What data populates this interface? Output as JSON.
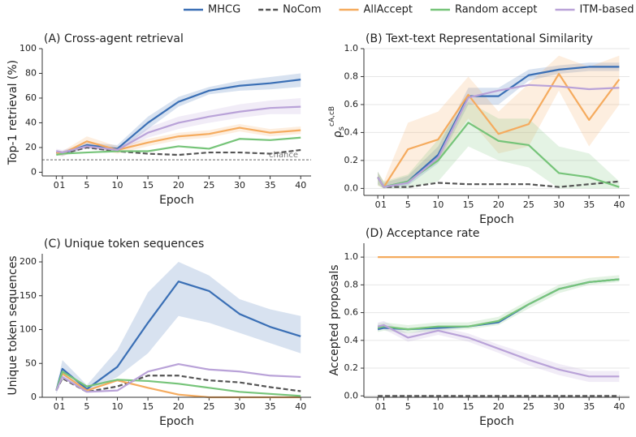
{
  "chart_data": [
    {
      "type": "line",
      "title": "(A) Cross-agent retrieval",
      "xlabel": "Epoch",
      "ylabel": "Top-1 retrieval (%)",
      "x": [
        0,
        1,
        5,
        10,
        15,
        20,
        25,
        30,
        35,
        40
      ],
      "xlim": [
        -2.3,
        41.7
      ],
      "xticks": [
        0,
        1,
        5,
        10,
        15,
        20,
        25,
        30,
        35,
        40
      ],
      "ylim": [
        -3,
        100
      ],
      "yticks": [
        0,
        20,
        40,
        60,
        80,
        100
      ],
      "grid": false,
      "hline": {
        "value": 10,
        "label": "chance"
      },
      "series": [
        {
          "name": "MHCG",
          "color": "#3a6fb5",
          "values": [
            16,
            15,
            22,
            19,
            40,
            57,
            66,
            70,
            72,
            75
          ],
          "lower": [
            14,
            13,
            20,
            16,
            35,
            53,
            63,
            66,
            67,
            69
          ],
          "upper": [
            18,
            17,
            24,
            22,
            45,
            61,
            69,
            74,
            77,
            80
          ]
        },
        {
          "name": "NoCom",
          "color": "#555555",
          "dashed": true,
          "values": [
            16,
            15,
            20,
            17,
            15,
            14,
            16,
            16,
            15,
            18
          ]
        },
        {
          "name": "AllAccept",
          "color": "#f5ab5e",
          "values": [
            16,
            15,
            25,
            18,
            24,
            29,
            31,
            36,
            32,
            34
          ],
          "lower": [
            14,
            13,
            21,
            15,
            21,
            26,
            28,
            33,
            29,
            31
          ],
          "upper": [
            18,
            17,
            29,
            21,
            27,
            32,
            34,
            39,
            35,
            37
          ]
        },
        {
          "name": "Random accept",
          "color": "#76c479",
          "values": [
            14,
            15,
            16,
            17,
            17,
            21,
            19,
            27,
            26,
            28
          ]
        },
        {
          "name": "ITM-based",
          "color": "#b9a2d8",
          "values": [
            17,
            16,
            21,
            18,
            32,
            40,
            45,
            49,
            52,
            53
          ],
          "lower": [
            15,
            14,
            19,
            16,
            28,
            35,
            40,
            44,
            47,
            47
          ],
          "upper": [
            19,
            18,
            23,
            20,
            36,
            45,
            50,
            55,
            58,
            60
          ]
        }
      ]
    },
    {
      "type": "line",
      "title": "(B) Text-text Representational Similarity",
      "xlabel": "Epoch",
      "ylabel": {
        "base": "ρ",
        "sub": "s",
        "sup": "cA,cB"
      },
      "x": [
        0,
        1,
        5,
        10,
        15,
        20,
        25,
        30,
        35,
        40
      ],
      "xlim": [
        -2.3,
        41.7
      ],
      "xticks": [
        0,
        1,
        5,
        10,
        15,
        20,
        25,
        30,
        35,
        40
      ],
      "ylim": [
        -0.05,
        1.0
      ],
      "yticks": [
        {
          "value": 0,
          "label": "0.0"
        },
        0.2,
        0.4,
        0.6,
        0.8,
        {
          "value": 1,
          "label": "1.0"
        }
      ],
      "grid": true,
      "series": [
        {
          "name": "MHCG",
          "color": "#3a6fb5",
          "values": [
            0.08,
            0.01,
            0.05,
            0.24,
            0.66,
            0.66,
            0.81,
            0.85,
            0.87,
            0.87
          ],
          "lower": [
            0.03,
            0,
            0.02,
            0.18,
            0.6,
            0.6,
            0.77,
            0.82,
            0.84,
            0.84
          ],
          "upper": [
            0.12,
            0.04,
            0.09,
            0.3,
            0.72,
            0.72,
            0.85,
            0.88,
            0.9,
            0.9
          ]
        },
        {
          "name": "NoCom",
          "color": "#555555",
          "dashed": true,
          "values": [
            0.08,
            0.01,
            0.01,
            0.04,
            0.03,
            0.03,
            0.03,
            0.01,
            0.03,
            0.05
          ]
        },
        {
          "name": "AllAccept",
          "color": "#f5ab5e",
          "values": [
            0.08,
            0.01,
            0.28,
            0.35,
            0.67,
            0.39,
            0.46,
            0.82,
            0.49,
            0.78
          ],
          "lower": [
            0.02,
            0,
            0.05,
            0.2,
            0.5,
            0.25,
            0.3,
            0.7,
            0.3,
            0.6
          ],
          "upper": [
            0.12,
            0.05,
            0.47,
            0.55,
            0.8,
            0.55,
            0.75,
            0.95,
            0.87,
            0.95
          ]
        },
        {
          "name": "Random accept",
          "color": "#76c479",
          "values": [
            0.08,
            0.01,
            0.05,
            0.2,
            0.47,
            0.34,
            0.31,
            0.11,
            0.08,
            0.01
          ],
          "lower": [
            0.02,
            0,
            0,
            0.05,
            0.3,
            0.2,
            0.15,
            0,
            0,
            0
          ],
          "upper": [
            0.12,
            0.05,
            0.1,
            0.35,
            0.62,
            0.5,
            0.5,
            0.3,
            0.25,
            0.05
          ]
        },
        {
          "name": "ITM-based",
          "color": "#b9a2d8",
          "values": [
            0.08,
            0.01,
            0.04,
            0.22,
            0.65,
            0.7,
            0.74,
            0.73,
            0.71,
            0.72
          ]
        }
      ]
    },
    {
      "type": "line",
      "title": "(C) Unique token sequences",
      "xlabel": "Epoch",
      "ylabel": "Unique token sequences",
      "x": [
        0,
        1,
        5,
        10,
        15,
        20,
        25,
        30,
        35,
        40
      ],
      "xlim": [
        -2.3,
        41.7
      ],
      "xticks": [
        0,
        1,
        5,
        10,
        15,
        20,
        25,
        30,
        35,
        40
      ],
      "ylim": [
        0,
        212
      ],
      "yticks": [
        0,
        50,
        100,
        150,
        200
      ],
      "grid": false,
      "series": [
        {
          "name": "MHCG",
          "color": "#3a6fb5",
          "values": [
            10,
            42,
            12,
            45,
            110,
            171,
            157,
            123,
            104,
            90
          ],
          "lower": [
            5,
            32,
            8,
            30,
            65,
            120,
            110,
            95,
            80,
            65
          ],
          "upper": [
            15,
            55,
            18,
            70,
            155,
            200,
            180,
            145,
            130,
            120
          ]
        },
        {
          "name": "NoCom",
          "color": "#555555",
          "dashed": true,
          "values": [
            10,
            28,
            8,
            16,
            32,
            32,
            25,
            22,
            15,
            9
          ]
        },
        {
          "name": "AllAccept",
          "color": "#f5ab5e",
          "values": [
            10,
            35,
            10,
            25,
            14,
            4,
            0,
            0,
            0,
            0
          ]
        },
        {
          "name": "Random accept",
          "color": "#76c479",
          "values": [
            10,
            38,
            16,
            26,
            24,
            20,
            14,
            8,
            5,
            2
          ]
        },
        {
          "name": "ITM-based",
          "color": "#b9a2d8",
          "values": [
            10,
            30,
            8,
            10,
            38,
            49,
            41,
            38,
            32,
            30
          ]
        }
      ]
    },
    {
      "type": "line",
      "title": "(D) Acceptance rate",
      "xlabel": "Epoch",
      "ylabel": "Accepted proposals",
      "x": [
        0,
        1,
        5,
        10,
        15,
        20,
        25,
        30,
        35,
        40
      ],
      "xlim": [
        -2.3,
        41.7
      ],
      "xticks": [
        0,
        1,
        5,
        10,
        15,
        20,
        25,
        30,
        35,
        40
      ],
      "ylim": [
        -0.01,
        1.1
      ],
      "yticks": [
        {
          "value": 0,
          "label": "0.0"
        },
        0.2,
        0.4,
        0.6,
        0.8,
        {
          "value": 1,
          "label": "1.0"
        }
      ],
      "grid": true,
      "series": [
        {
          "name": "MHCG",
          "color": "#3a6fb5",
          "values": [
            0.48,
            0.49,
            0.48,
            0.49,
            0.5,
            0.53,
            0.66,
            0.77,
            0.82,
            0.84
          ]
        },
        {
          "name": "NoCom",
          "color": "#555555",
          "dashed": true,
          "values": [
            0,
            0,
            0,
            0,
            0,
            0,
            0,
            0,
            0,
            0
          ]
        },
        {
          "name": "AllAccept",
          "color": "#f5ab5e",
          "values": [
            1,
            1,
            1,
            1,
            1,
            1,
            1,
            1,
            1,
            1
          ]
        },
        {
          "name": "Random accept",
          "color": "#76c479",
          "values": [
            0.49,
            0.5,
            0.48,
            0.5,
            0.5,
            0.54,
            0.66,
            0.77,
            0.82,
            0.84
          ],
          "lower": [
            0.46,
            0.47,
            0.45,
            0.47,
            0.48,
            0.51,
            0.63,
            0.74,
            0.8,
            0.82
          ],
          "upper": [
            0.52,
            0.53,
            0.51,
            0.53,
            0.53,
            0.57,
            0.69,
            0.8,
            0.85,
            0.87
          ]
        },
        {
          "name": "ITM-based",
          "color": "#b9a2d8",
          "values": [
            0.5,
            0.51,
            0.42,
            0.47,
            0.42,
            0.34,
            0.26,
            0.19,
            0.14,
            0.14
          ],
          "lower": [
            0.47,
            0.48,
            0.39,
            0.44,
            0.39,
            0.31,
            0.22,
            0.15,
            0.1,
            0.1
          ],
          "upper": [
            0.53,
            0.54,
            0.45,
            0.5,
            0.45,
            0.37,
            0.3,
            0.23,
            0.18,
            0.18
          ]
        }
      ]
    }
  ]
}
